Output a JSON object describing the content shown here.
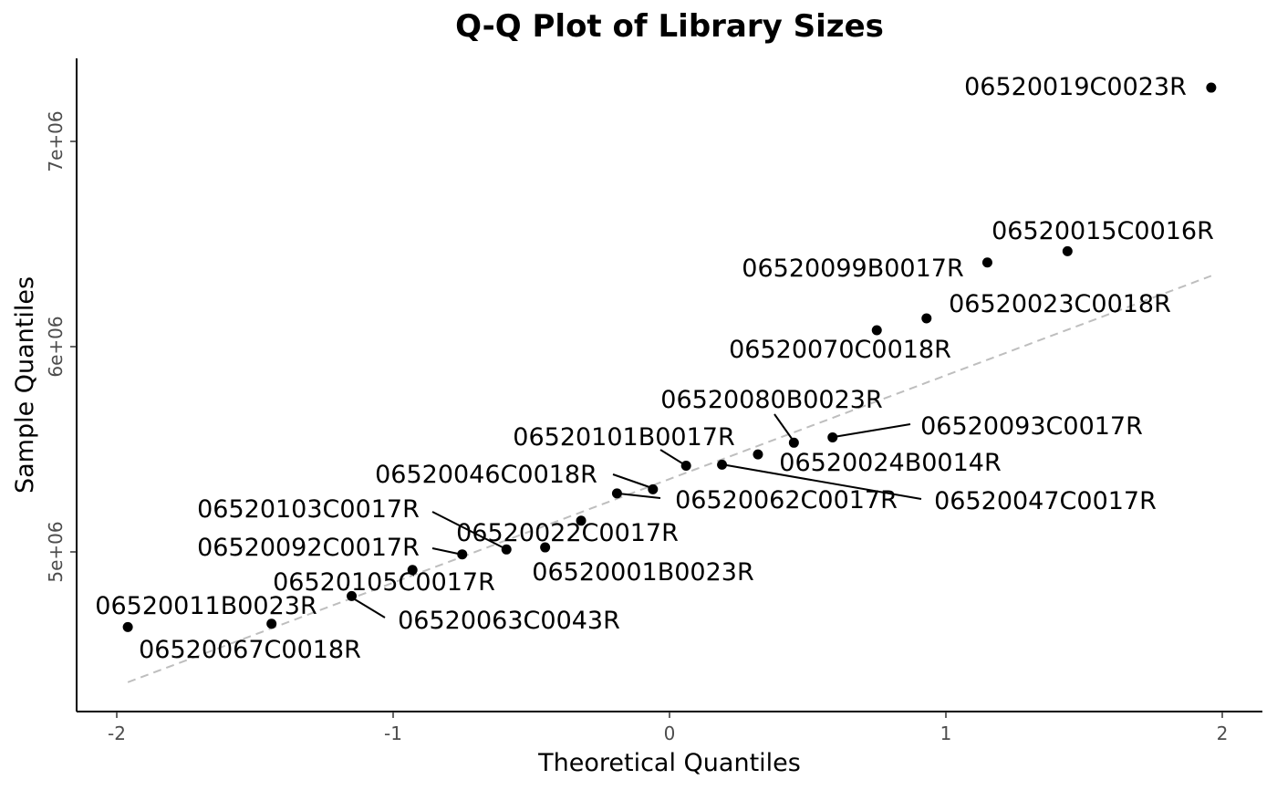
{
  "chart_data": {
    "type": "scatter",
    "title": "Q-Q Plot of Library Sizes",
    "xlabel": "Theoretical Quantiles",
    "ylabel": "Sample Quantiles",
    "xlim": [
      -2.15,
      2.15
    ],
    "ylim": [
      4580000,
      7400000
    ],
    "x_ticks": [
      -2,
      -1,
      0,
      1,
      2
    ],
    "x_tick_labels": [
      "-2",
      "-1",
      "0",
      "1",
      "2"
    ],
    "y_ticks": [
      5000000,
      6000000,
      7000000
    ],
    "y_tick_labels": [
      "5e+06",
      "6e+06",
      "7e+06"
    ],
    "grid": false,
    "reference_line": {
      "style": "dashed",
      "color": "#bebebe"
    },
    "point_color": "#000000",
    "points": [
      {
        "x": -1.96,
        "y": 4634000,
        "label": "06520011B0023R"
      },
      {
        "x": -1.44,
        "y": 4650000,
        "label": "06520067C0018R"
      },
      {
        "x": -1.15,
        "y": 4785000,
        "label": "06520063C0043R"
      },
      {
        "x": -0.93,
        "y": 4912000,
        "label": "06520105C0017R"
      },
      {
        "x": -0.75,
        "y": 4988000,
        "label": "06520092C0017R"
      },
      {
        "x": -0.59,
        "y": 5012000,
        "label": "06520103C0017R"
      },
      {
        "x": -0.45,
        "y": 5022000,
        "label": "06520001B0023R"
      },
      {
        "x": -0.32,
        "y": 5152000,
        "label": "06520022C0017R"
      },
      {
        "x": -0.19,
        "y": 5285000,
        "label": "06520062C0017R"
      },
      {
        "x": -0.06,
        "y": 5305000,
        "label": "06520046C0018R"
      },
      {
        "x": 0.06,
        "y": 5420000,
        "label": "06520101B0017R"
      },
      {
        "x": 0.19,
        "y": 5425000,
        "label": "06520047C0017R"
      },
      {
        "x": 0.32,
        "y": 5475000,
        "label": "06520024B0014R"
      },
      {
        "x": 0.45,
        "y": 5532000,
        "label": "06520080B0023R"
      },
      {
        "x": 0.59,
        "y": 5558000,
        "label": "06520093C0017R"
      },
      {
        "x": 0.75,
        "y": 6080000,
        "label": "06520070C0018R"
      },
      {
        "x": 0.93,
        "y": 6138000,
        "label": "06520023C0018R"
      },
      {
        "x": 1.15,
        "y": 6410000,
        "label": "06520099B0017R"
      },
      {
        "x": 1.44,
        "y": 6465000,
        "label": "06520015C0016R"
      },
      {
        "x": 1.96,
        "y": 7262000,
        "label": "06520019C0023R"
      }
    ],
    "reference_line_endpoints": [
      {
        "x": -1.96,
        "y": 4365000
      },
      {
        "x": 1.96,
        "y": 6345000
      }
    ]
  }
}
